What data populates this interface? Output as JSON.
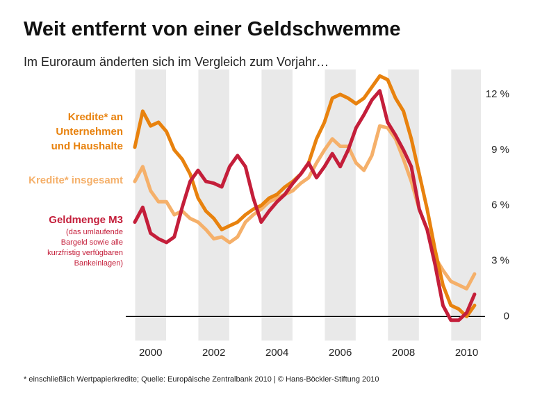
{
  "chart_data": {
    "type": "line",
    "title": "Weit entfernt von einer Geldschwemme",
    "subtitle": "Im Euroraum änderten sich im Vergleich zum Vorjahr…",
    "source": "* einschließlich Wertpapierkredite; Quelle: Europäische Zentralbank 2010 | © Hans-Böckler-Stiftung 2010",
    "m3_note": "(das umlaufende\nBargeld sowie alle\nkurzfristig verfügbaren\nBankeinlagen)",
    "x": [
      2000,
      2000.25,
      2000.5,
      2000.75,
      2001,
      2001.25,
      2001.5,
      2001.75,
      2002,
      2002.25,
      2002.5,
      2002.75,
      2003,
      2003.25,
      2003.5,
      2003.75,
      2004,
      2004.25,
      2004.5,
      2004.75,
      2005,
      2005.25,
      2005.5,
      2005.75,
      2006,
      2006.25,
      2006.5,
      2006.75,
      2007,
      2007.25,
      2007.5,
      2007.75,
      2008,
      2008.25,
      2008.5,
      2008.75,
      2009,
      2009.25,
      2009.5,
      2009.75,
      2010,
      2010.25,
      2010.5,
      2010.75
    ],
    "series": [
      {
        "name": "Kredite* an\nUnternehmen\nund Haushalte",
        "color": "#e8820e",
        "values": [
          9.15,
          11.1,
          10.3,
          10.5,
          10.0,
          9.0,
          8.5,
          7.7,
          6.4,
          5.7,
          5.3,
          4.7,
          4.9,
          5.1,
          5.5,
          5.8,
          6.0,
          6.4,
          6.6,
          7.0,
          7.3,
          7.7,
          8.3,
          9.6,
          10.5,
          11.8,
          12.0,
          11.8,
          11.5,
          11.8,
          12.4,
          13.0,
          12.8,
          11.8,
          11.1,
          9.6,
          7.7,
          5.8,
          3.6,
          1.7,
          0.6,
          0.4,
          0.0,
          0.6
        ]
      },
      {
        "name": "Kredite* insgesamt",
        "color": "#f5b06a",
        "values": [
          7.3,
          8.1,
          6.8,
          6.2,
          6.2,
          5.5,
          5.7,
          5.3,
          5.1,
          4.7,
          4.2,
          4.3,
          4.0,
          4.3,
          5.1,
          5.5,
          5.8,
          6.2,
          6.4,
          6.6,
          6.8,
          7.2,
          7.5,
          8.3,
          9.0,
          9.6,
          9.2,
          9.2,
          8.3,
          7.9,
          8.7,
          10.3,
          10.2,
          9.6,
          8.5,
          7.3,
          5.8,
          4.7,
          3.2,
          2.5,
          1.9,
          1.7,
          1.5,
          2.3
        ]
      },
      {
        "name": "Geldmenge M3",
        "color": "#c41e3a",
        "values": [
          5.1,
          5.9,
          4.5,
          4.2,
          4.0,
          4.3,
          5.9,
          7.3,
          7.9,
          7.3,
          7.2,
          7.0,
          8.1,
          8.7,
          8.1,
          6.4,
          5.1,
          5.7,
          6.2,
          6.6,
          7.2,
          7.7,
          8.3,
          7.5,
          8.1,
          8.8,
          8.1,
          9.0,
          10.2,
          10.9,
          11.7,
          12.2,
          10.5,
          9.8,
          9.0,
          8.1,
          5.8,
          4.7,
          2.8,
          0.6,
          -0.2,
          -0.2,
          0.2,
          1.2
        ]
      }
    ],
    "xlim": [
      2000,
      2010.95
    ],
    "xticks": [
      {
        "value": 2000.5,
        "label": "2000"
      },
      {
        "value": 2002.5,
        "label": "2002"
      },
      {
        "value": 2004.5,
        "label": "2004"
      },
      {
        "value": 2006.5,
        "label": "2006"
      },
      {
        "value": 2008.5,
        "label": "2008"
      },
      {
        "value": 2010.5,
        "label": "2010"
      }
    ],
    "ylim": [
      -1.3,
      13.35
    ],
    "yticks": [
      0,
      {
        "value": 3,
        "label": "3 %"
      },
      {
        "value": 6,
        "label": "6 %"
      },
      {
        "value": 9,
        "label": "9 %"
      },
      {
        "value": 12,
        "label": "12 %"
      }
    ],
    "grid": false
  }
}
